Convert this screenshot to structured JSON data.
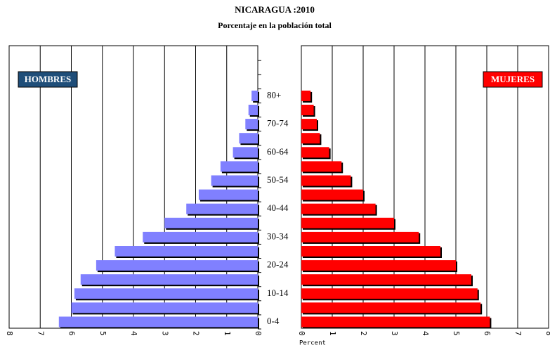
{
  "chart_data": {
    "type": "pyramid",
    "title": "NICARAGUA :2010",
    "subtitle": "Porcentaje en la población total",
    "categories": [
      "0-4",
      null,
      "10-14",
      null,
      "20-24",
      null,
      "30-34",
      null,
      "40-44",
      null,
      "50-54",
      null,
      "60-64",
      null,
      "70-74",
      null,
      "80+"
    ],
    "series": [
      {
        "name": "HOMBRES",
        "color": "#8080ff",
        "label_color": "#1f4e79",
        "values": [
          6.4,
          6.0,
          5.9,
          5.7,
          5.2,
          4.6,
          3.7,
          3.0,
          2.3,
          1.9,
          1.5,
          1.2,
          0.8,
          0.6,
          0.4,
          0.3,
          0.2
        ]
      },
      {
        "name": "MUJERES",
        "color": "#ff0000",
        "label_color": "#ff0000",
        "values": [
          6.1,
          5.8,
          5.7,
          5.5,
          5.0,
          4.5,
          3.8,
          3.0,
          2.4,
          2.0,
          1.6,
          1.3,
          0.9,
          0.6,
          0.5,
          0.4,
          0.3
        ]
      }
    ],
    "x_label": "Percent",
    "xlim": [
      0,
      8
    ],
    "xticks": [
      0,
      1,
      2,
      3,
      4,
      5,
      6,
      7,
      8
    ],
    "grid": true
  }
}
